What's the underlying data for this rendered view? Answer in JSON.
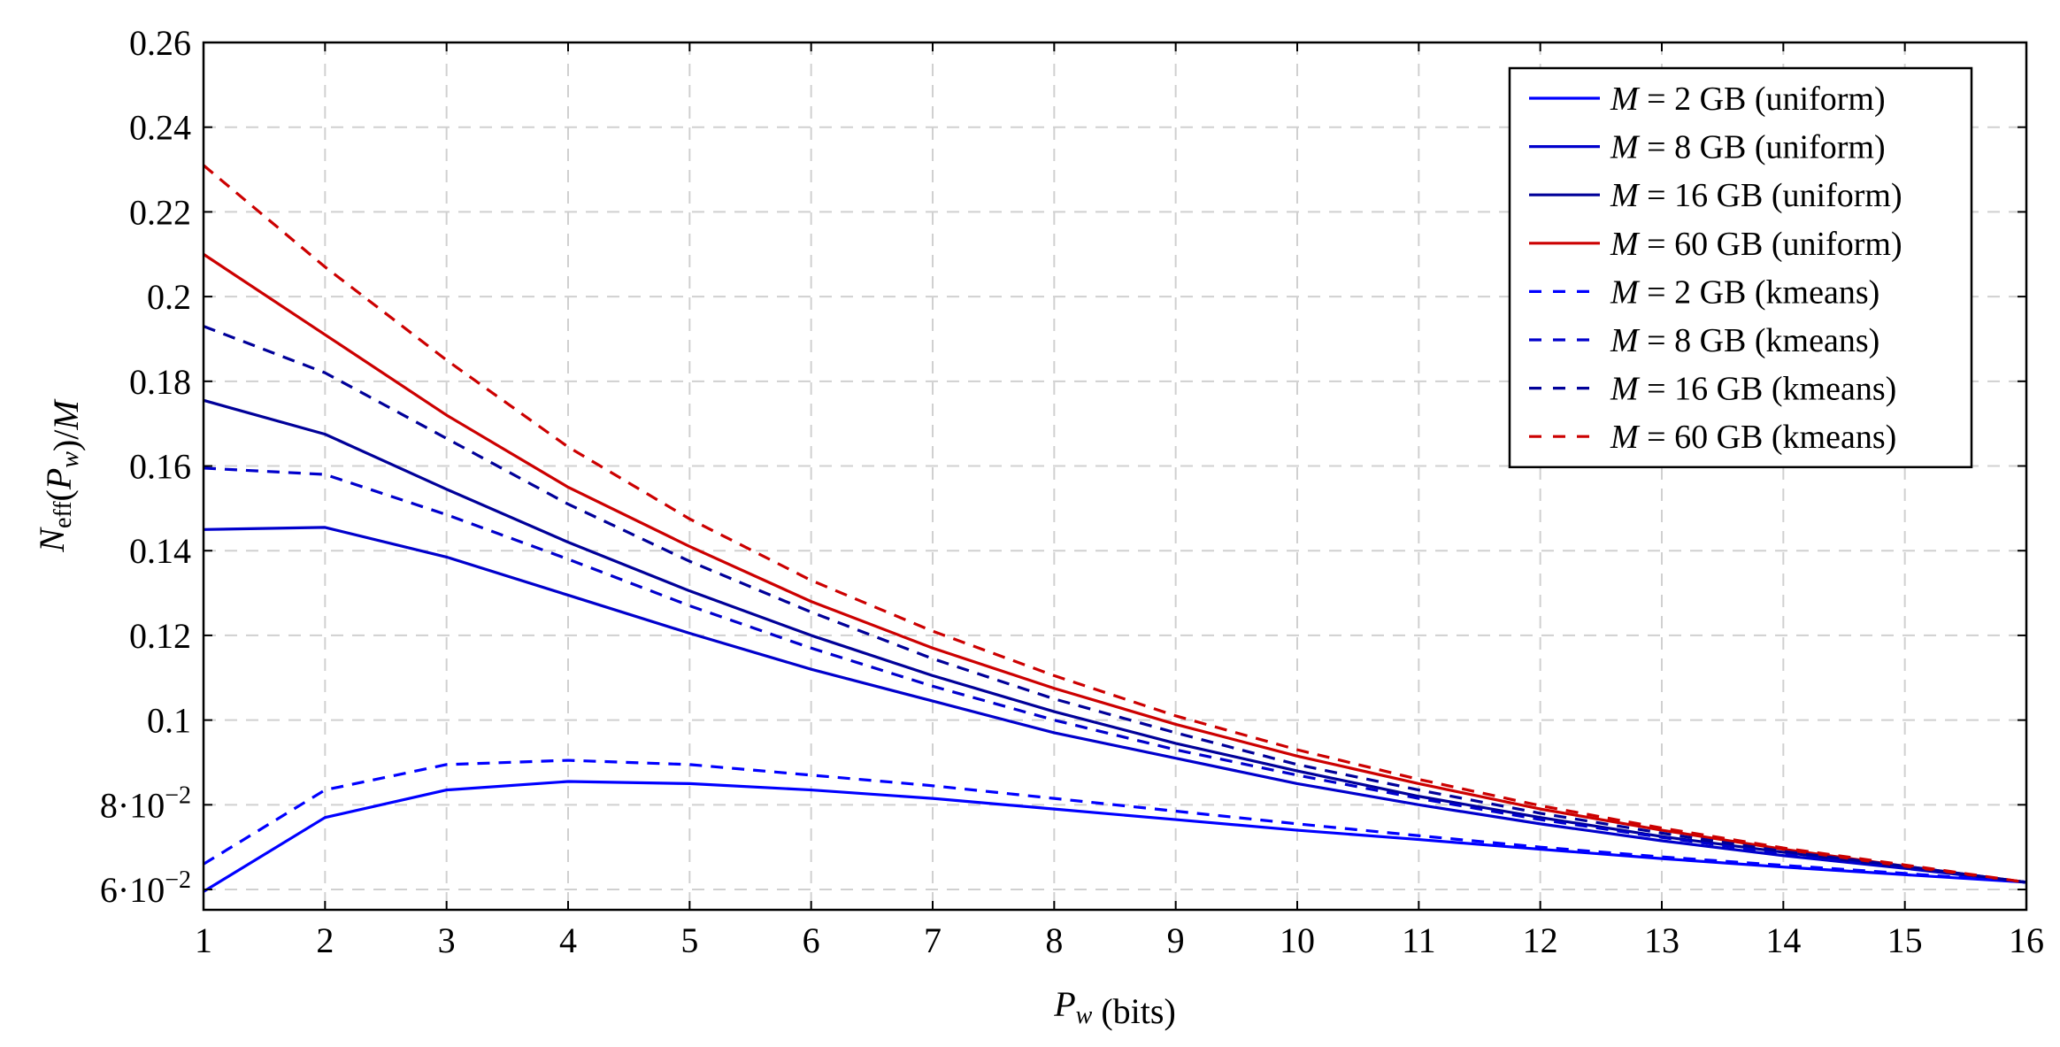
{
  "chart_data": {
    "type": "line",
    "xlabel_parts": [
      {
        "text": "P",
        "italic": true
      },
      {
        "text": "w",
        "sub": true,
        "italic": true
      },
      {
        "text": " (bits)"
      }
    ],
    "ylabel_parts": [
      {
        "text": "N",
        "italic": true
      },
      {
        "text": "eff",
        "sub": true
      },
      {
        "text": "("
      },
      {
        "text": "P",
        "italic": true
      },
      {
        "text": "w",
        "sub": true,
        "italic": true
      },
      {
        "text": ")/"
      },
      {
        "text": "M",
        "italic": true
      }
    ],
    "xlim": [
      1,
      16
    ],
    "ylim": [
      0.0552,
      0.26
    ],
    "grid": true,
    "legend_position": "top-right",
    "x": [
      1,
      2,
      3,
      4,
      5,
      6,
      7,
      8,
      9,
      10,
      11,
      12,
      13,
      14,
      15,
      16
    ],
    "xticks": [
      "1",
      "2",
      "3",
      "4",
      "5",
      "6",
      "7",
      "8",
      "9",
      "10",
      "11",
      "12",
      "13",
      "14",
      "15",
      "16"
    ],
    "yticks": [
      {
        "value": 0.06,
        "label": "6·10",
        "exp": "−2"
      },
      {
        "value": 0.08,
        "label": "8·10",
        "exp": "−2"
      },
      {
        "value": 0.1,
        "label": "0.1"
      },
      {
        "value": 0.12,
        "label": "0.12"
      },
      {
        "value": 0.14,
        "label": "0.14"
      },
      {
        "value": 0.16,
        "label": "0.16"
      },
      {
        "value": 0.18,
        "label": "0.18"
      },
      {
        "value": 0.2,
        "label": "0.2"
      },
      {
        "value": 0.22,
        "label": "0.22"
      },
      {
        "value": 0.24,
        "label": "0.24"
      },
      {
        "value": 0.26,
        "label": "0.26"
      }
    ],
    "series": [
      {
        "name": "M = 2 GB (uniform)",
        "color": "#0000ff",
        "dash": false,
        "values": [
          0.0595,
          0.077,
          0.0835,
          0.0855,
          0.085,
          0.0835,
          0.0815,
          0.079,
          0.0765,
          0.074,
          0.0718,
          0.0695,
          0.0673,
          0.0653,
          0.0635,
          0.0617
        ]
      },
      {
        "name": "M = 8 GB (uniform)",
        "color": "#0000cc",
        "dash": false,
        "values": [
          0.145,
          0.1455,
          0.1385,
          0.1295,
          0.1205,
          0.112,
          0.1045,
          0.097,
          0.091,
          0.085,
          0.08,
          0.0755,
          0.0715,
          0.068,
          0.065,
          0.0617
        ]
      },
      {
        "name": "M = 16 GB (uniform)",
        "color": "#000099",
        "dash": false,
        "values": [
          0.1755,
          0.1675,
          0.1545,
          0.142,
          0.1305,
          0.12,
          0.1105,
          0.102,
          0.0945,
          0.088,
          0.082,
          0.077,
          0.0725,
          0.0688,
          0.0652,
          0.0617
        ]
      },
      {
        "name": "M = 60 GB (uniform)",
        "color": "#cc0000",
        "dash": false,
        "values": [
          0.21,
          0.191,
          0.172,
          0.155,
          0.141,
          0.128,
          0.117,
          0.1075,
          0.099,
          0.0915,
          0.085,
          0.079,
          0.074,
          0.0695,
          0.0655,
          0.0617
        ]
      },
      {
        "name": "M = 2 GB (kmeans)",
        "color": "#0000ff",
        "dash": true,
        "values": [
          0.066,
          0.0835,
          0.0895,
          0.0905,
          0.0895,
          0.087,
          0.0845,
          0.0815,
          0.0785,
          0.0755,
          0.0727,
          0.07,
          0.0677,
          0.0657,
          0.0638,
          0.0617
        ]
      },
      {
        "name": "M = 8 GB (kmeans)",
        "color": "#0000cc",
        "dash": true,
        "values": [
          0.1595,
          0.158,
          0.1485,
          0.138,
          0.127,
          0.117,
          0.108,
          0.1,
          0.093,
          0.087,
          0.0815,
          0.0765,
          0.0723,
          0.0685,
          0.0652,
          0.0617
        ]
      },
      {
        "name": "M = 16 GB (kmeans)",
        "color": "#000099",
        "dash": true,
        "values": [
          0.193,
          0.182,
          0.1665,
          0.151,
          0.1375,
          0.1255,
          0.1145,
          0.105,
          0.097,
          0.0895,
          0.0835,
          0.078,
          0.0733,
          0.069,
          0.0655,
          0.0617
        ]
      },
      {
        "name": "M = 60 GB (kmeans)",
        "color": "#cc0000",
        "dash": true,
        "values": [
          0.231,
          0.207,
          0.185,
          0.1645,
          0.1475,
          0.133,
          0.121,
          0.1105,
          0.101,
          0.093,
          0.086,
          0.0798,
          0.0745,
          0.0698,
          0.0658,
          0.0617
        ]
      }
    ]
  }
}
